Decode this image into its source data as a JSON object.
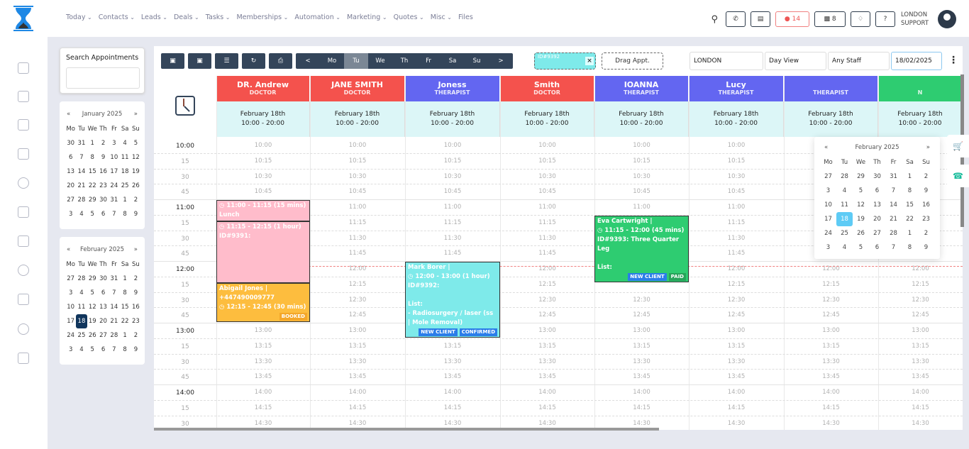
{
  "nav": {
    "items": [
      "Today",
      "Contacts",
      "Leads",
      "Deals",
      "Tasks",
      "Memberships",
      "Automation",
      "Marketing",
      "Quotes",
      "Misc",
      "Files"
    ]
  },
  "header": {
    "messages_count": "14",
    "store_count": "8",
    "user_line1": "LONDON",
    "user_line2": "SUPPORT"
  },
  "search": {
    "label": "Search Appointments",
    "value": ""
  },
  "jan": {
    "title": "January 2025",
    "prev": "«",
    "next": "»",
    "weekdays": [
      "Mo",
      "Tu",
      "We",
      "Th",
      "Fr",
      "Sa",
      "Su"
    ],
    "days": [
      "30",
      "31",
      "1",
      "2",
      "3",
      "4",
      "5",
      "6",
      "7",
      "8",
      "9",
      "10",
      "11",
      "12",
      "13",
      "14",
      "15",
      "16",
      "17",
      "18",
      "19",
      "20",
      "21",
      "22",
      "23",
      "24",
      "25",
      "26",
      "27",
      "28",
      "29",
      "30",
      "31",
      "1",
      "2",
      "3",
      "4",
      "5",
      "6",
      "7",
      "8",
      "9"
    ]
  },
  "feb": {
    "title": "February 2025",
    "prev": "«",
    "next": "»",
    "weekdays": [
      "Mo",
      "Tu",
      "We",
      "Th",
      "Fr",
      "Sa",
      "Su"
    ],
    "selected": "18",
    "days": [
      "27",
      "28",
      "29",
      "30",
      "31",
      "1",
      "2",
      "3",
      "4",
      "5",
      "6",
      "7",
      "8",
      "9",
      "10",
      "11",
      "12",
      "13",
      "14",
      "15",
      "16",
      "17",
      "18",
      "19",
      "20",
      "21",
      "22",
      "23",
      "24",
      "25",
      "26",
      "27",
      "28",
      "1",
      "2",
      "3",
      "4",
      "5",
      "6",
      "7",
      "8",
      "9"
    ]
  },
  "toolbar": {
    "prev": "<",
    "next": ">",
    "days": [
      "Mo",
      "Tu",
      "We",
      "Th",
      "Fr",
      "Sa",
      "Su"
    ],
    "active_day": "Tu",
    "drag_ghost_id": "ID#9392",
    "drag_label": "Drag Appt.",
    "location": "LONDON",
    "view": "Day View",
    "staff": "Any Staff",
    "date": "18/02/2025"
  },
  "columns": [
    {
      "name": "DR. Andrew",
      "role": "DOCTOR",
      "color": "#f4524d",
      "date": "February 18th",
      "hours": "10:00 - 20:00"
    },
    {
      "name": "JANE SMITH",
      "role": "DOCTOR",
      "color": "#f4524d",
      "date": "February 18th",
      "hours": "10:00 - 20:00"
    },
    {
      "name": "Joness",
      "role": "THERAPIST",
      "color": "#6366f1",
      "date": "February 18th",
      "hours": "10:00 - 20:00"
    },
    {
      "name": "Smith",
      "role": "DOCTOR",
      "color": "#f4524d",
      "date": "February 18th",
      "hours": "10:00 - 20:00"
    },
    {
      "name": "IOANNA",
      "role": "THERAPIST",
      "color": "#6366f1",
      "date": "February 18th",
      "hours": "10:00 - 20:00"
    },
    {
      "name": "Lucy",
      "role": "THERAPIST",
      "color": "#6366f1",
      "date": "February 18th",
      "hours": "10:00 - 20:00"
    },
    {
      "name": "",
      "role": "THERAPIST",
      "color": "#6366f1",
      "date": "February 18th",
      "hours": "10:00 - 20:00"
    },
    {
      "name": "",
      "role": "N",
      "color": "#2ecc71",
      "date": "February 18th",
      "hours": "10:00 - 20:00"
    }
  ],
  "slots": [
    "10:00",
    "10:15",
    "10:30",
    "10:45",
    "11:00",
    "11:15",
    "11:30",
    "11:45",
    "12:00",
    "12:15",
    "12:30",
    "12:45",
    "13:00",
    "13:15",
    "13:30",
    "13:45",
    "14:00",
    "14:15",
    "14:30"
  ],
  "slot_labels": [
    "10:00",
    "15",
    "30",
    "45",
    "11:00",
    "15",
    "30",
    "45",
    "12:00",
    "15",
    "30",
    "45",
    "13:00",
    "15",
    "30",
    "45",
    "14:00",
    "15",
    "30"
  ],
  "appointments": [
    {
      "col": 0,
      "start": "11:00",
      "end": "11:15",
      "color": "#ffbccb",
      "lines": [
        "◷ 11:00 - 11:15 (15 mins)",
        "Lunch"
      ],
      "badges": []
    },
    {
      "col": 0,
      "start": "11:15",
      "end": "12:15",
      "color": "#ffbccb",
      "lines": [
        "◷ 11:15 - 12:15 (1 hour)",
        "ID#9391:"
      ],
      "badges": []
    },
    {
      "col": 0,
      "start": "12:15",
      "end": "12:45",
      "color": "#fdbd3e",
      "lines": [
        "Abigail Jones |",
        "+447490009777",
        "◷ 12:15 - 12:45 (30 mins)"
      ],
      "badges": [
        {
          "label": "BOOKED",
          "color": "#f4a72a"
        }
      ]
    },
    {
      "col": 2,
      "start": "12:00",
      "end": "13:00",
      "color": "#7eeaea",
      "lines": [
        "Mark Borer |",
        "◷ 12:00 - 13:00 (1 hour)",
        "ID#9392:",
        "",
        "List:",
        "- Radiosurgery / laser (ss | Mole Removal)"
      ],
      "badges": [
        {
          "label": "NEW CLIENT",
          "color": "#2b7de9"
        },
        {
          "label": "CONFIRMED",
          "color": "#2b7de9"
        }
      ]
    },
    {
      "col": 4,
      "start": "11:15",
      "end": "12:00",
      "color": "#2ecc71",
      "lines": [
        "Eva Cartwright |",
        "◷ 11:15 - 12:00 (45 mins)",
        "ID#9393: Three Quarter Leg",
        "",
        "List:"
      ],
      "badges": [
        {
          "label": "NEW CLIENT",
          "color": "#2b7de9"
        },
        {
          "label": "PAID",
          "color": "#27a35a"
        }
      ]
    }
  ],
  "popup": {
    "title": "February 2025",
    "prev": "«",
    "next": "»",
    "selected": "18"
  }
}
